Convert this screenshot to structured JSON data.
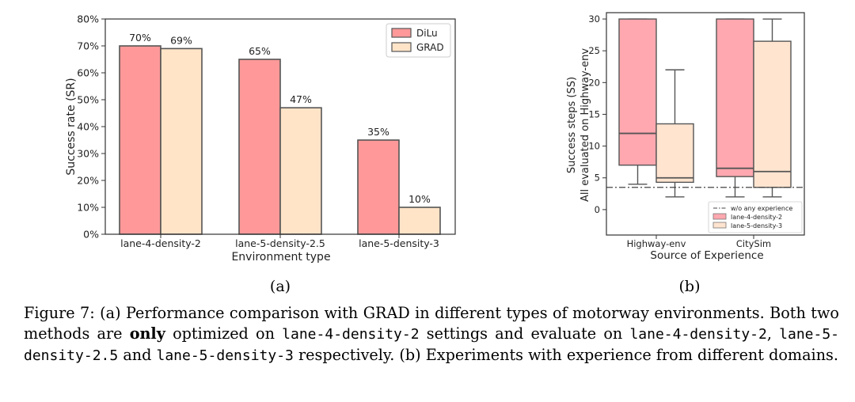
{
  "chart_data": [
    {
      "type": "bar",
      "panel_label": "(a)",
      "xlabel": "Environment type",
      "ylabel": "Success rate (SR)",
      "ylim": [
        0,
        80
      ],
      "y_ticks": [
        "0%",
        "10%",
        "20%",
        "30%",
        "40%",
        "50%",
        "60%",
        "70%",
        "80%"
      ],
      "categories": [
        "lane-4-density-2",
        "lane-5-density-2.5",
        "lane-5-density-3"
      ],
      "series": [
        {
          "name": "DiLu",
          "values": [
            70,
            65,
            35
          ],
          "labels": [
            "70%",
            "65%",
            "35%"
          ],
          "color": "#FF9999",
          "edge": "#555555"
        },
        {
          "name": "GRAD",
          "values": [
            69,
            47,
            10
          ],
          "labels": [
            "69%",
            "47%",
            "10%"
          ],
          "color": "#FFE4C8",
          "edge": "#555555"
        }
      ],
      "legend_position": "top-right"
    },
    {
      "type": "box",
      "panel_label": "(b)",
      "xlabel": "Source of Experience",
      "ylabel": "Success steps (SS)",
      "ylabel2": "All evaluated on Highway-env",
      "ylim": [
        -4,
        31
      ],
      "y_ticks": [
        "0",
        "5",
        "10",
        "15",
        "20",
        "25",
        "30"
      ],
      "categories": [
        "Highway-env",
        "CitySim"
      ],
      "baseline": {
        "name": "w/o any experience",
        "value": 3.5
      },
      "series": [
        {
          "name": "lane-4-density-2",
          "color": "#FFA8B0",
          "boxes": [
            {
              "whisker_low": 4,
              "q1": 7,
              "median": 12,
              "q3": 30,
              "whisker_high": 30
            },
            {
              "whisker_low": 2,
              "q1": 5.2,
              "median": 6.5,
              "q3": 30,
              "whisker_high": 30
            }
          ]
        },
        {
          "name": "lane-5-density-3",
          "color": "#FFE4D0",
          "boxes": [
            {
              "whisker_low": 2,
              "q1": 4.3,
              "median": 5,
              "q3": 13.5,
              "whisker_high": 22
            },
            {
              "whisker_low": 2,
              "q1": 3.5,
              "median": 6,
              "q3": 26.5,
              "whisker_high": 30
            }
          ]
        }
      ],
      "legend_position": "bottom-right"
    }
  ],
  "caption": {
    "prefix": "Figure 7: (a) Performance comparison with GRAD in different types of motorway environments. Both two methods are ",
    "bold": "only",
    "mid1": " optimized on ",
    "code1": "lane-4-density-2",
    "mid2": " settings and evaluate on ",
    "code2": "lane-4-density-2",
    "mid3": ", ",
    "code3": "lane-5-density-2.5",
    "mid4": " and ",
    "code4": "lane-5-density-3",
    "suffix": " respectively. (b) Experiments with experience from different domains."
  }
}
